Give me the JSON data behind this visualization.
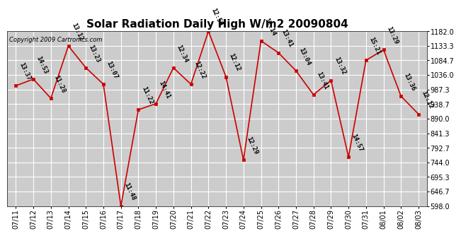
{
  "title": "Solar Radiation Daily High W/m2 20090804",
  "copyright": "Copyright 2009 Cartronics.com",
  "dates": [
    "07/11",
    "07/12",
    "07/13",
    "07/14",
    "07/15",
    "07/16",
    "07/17",
    "07/18",
    "07/19",
    "07/20",
    "07/21",
    "07/22",
    "07/23",
    "07/24",
    "07/25",
    "07/26",
    "07/27",
    "07/28",
    "07/29",
    "07/30",
    "07/31",
    "08/01",
    "08/02",
    "08/03"
  ],
  "values": [
    1000,
    1022,
    958,
    1133,
    1060,
    1005,
    598,
    920,
    940,
    1060,
    1005,
    1182,
    1030,
    752,
    1150,
    1110,
    1050,
    970,
    1018,
    762,
    1085,
    1120,
    965,
    905
  ],
  "label_display": [
    "13:37",
    "14:53",
    "11:28",
    "13:12",
    "13:23",
    "13:07",
    "11:48",
    "11:22",
    "14:41",
    "12:34",
    "12:22",
    "12:59",
    "12:12",
    "12:29",
    "12:14",
    "13:41",
    "13:04",
    "13:41",
    "13:32",
    "14:57",
    "15:21",
    "13:29",
    "13:36",
    "12:12"
  ],
  "ylim": [
    598.0,
    1182.0
  ],
  "yticks": [
    598.0,
    646.7,
    695.3,
    744.0,
    792.7,
    841.3,
    890.0,
    938.7,
    987.3,
    1036.0,
    1084.7,
    1133.3,
    1182.0
  ],
  "line_color": "#cc0000",
  "marker_color": "#cc0000",
  "bg_color": "#ffffff",
  "plot_bg_color": "#cccccc",
  "grid_color": "#ffffff",
  "title_fontsize": 11,
  "label_fontsize": 6.5,
  "tick_fontsize": 7,
  "copyright_fontsize": 6
}
